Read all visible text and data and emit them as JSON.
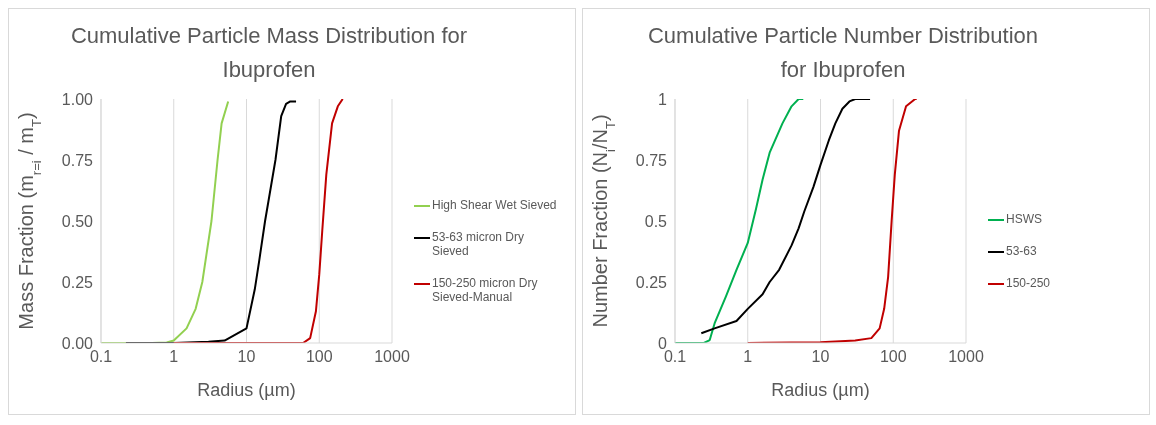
{
  "chart_data": [
    {
      "type": "line",
      "title": "Cumulative Particle Mass Distribution for Ibuprofen",
      "xlabel": "Radius (µm)",
      "ylabel": "Mass Fraction (m$_{r=i}$ / m$_{T}$)",
      "log": "x",
      "grid": true,
      "legend": "right",
      "xlim": [
        0.1,
        1000
      ],
      "xticks": [
        0.1,
        1,
        10,
        100,
        1000
      ],
      "ylim": [
        0,
        1
      ],
      "yticks": [
        {
          "value": 0,
          "label": "0.00"
        },
        {
          "value": 0.25,
          "label": "0.25"
        },
        {
          "value": 0.5,
          "label": "0.50"
        },
        {
          "value": 0.75,
          "label": "0.75"
        },
        {
          "value": 1,
          "label": "1.00"
        }
      ],
      "series": [
        {
          "name": "High Shear Wet Sieved",
          "color": "#92d050",
          "x": [
            0.1,
            0.5,
            0.8,
            1,
            1.5,
            2,
            2.47,
            3.3,
            4.0,
            4.55,
            5.6
          ],
          "values": [
            0,
            0,
            0.002,
            0.01,
            0.06,
            0.14,
            0.25,
            0.5,
            0.75,
            0.9,
            0.99
          ]
        },
        {
          "name": "53-63 micron Dry Sieved",
          "color": "#000000",
          "x": [
            0.22,
            1,
            3,
            5,
            10,
            13,
            15,
            18,
            20,
            25,
            30,
            35,
            40,
            48
          ],
          "values": [
            0,
            0,
            0.005,
            0.01,
            0.06,
            0.22,
            0.34,
            0.5,
            0.58,
            0.75,
            0.93,
            0.98,
            0.99,
            0.99
          ]
        },
        {
          "name": "150-250 micron Dry Sieved-Manual",
          "color": "#c00000",
          "x": [
            1,
            60,
            75,
            90,
            100,
            110,
            125,
            150,
            180,
            210
          ],
          "values": [
            0,
            0,
            0.02,
            0.13,
            0.28,
            0.46,
            0.69,
            0.9,
            0.97,
            1
          ]
        }
      ]
    },
    {
      "type": "line",
      "title": "Cumulative Particle Number Distribution for Ibuprofen",
      "xlabel": "Radius (µm)",
      "ylabel": "Number Fraction (N$_{i}$/N$_{T}$)",
      "log": "x",
      "grid": true,
      "legend": "right",
      "xlim": [
        0.1,
        1000
      ],
      "xticks": [
        0.1,
        1,
        10,
        100,
        1000
      ],
      "ylim": [
        0,
        1
      ],
      "yticks": [
        0,
        0.25,
        0.5,
        0.75,
        1
      ],
      "series": [
        {
          "name": "HSWS",
          "color": "#00b050",
          "x": [
            0.1,
            0.25,
            0.3,
            0.35,
            0.5,
            0.7,
            1,
            1.3,
            1.6,
            2,
            3,
            4,
            5,
            5.8
          ],
          "values": [
            0,
            0,
            0.012,
            0.08,
            0.19,
            0.3,
            0.41,
            0.55,
            0.67,
            0.78,
            0.9,
            0.97,
            1,
            1
          ]
        },
        {
          "name": "53-63",
          "color": "#000000",
          "x": [
            0.23,
            0.35,
            0.7,
            1,
            1.6,
            2,
            2.7,
            4,
            5,
            6,
            8,
            10,
            13,
            16,
            20,
            25,
            30,
            48
          ],
          "values": [
            0.04,
            0.06,
            0.09,
            0.14,
            0.2,
            0.25,
            0.3,
            0.4,
            0.47,
            0.54,
            0.64,
            0.73,
            0.83,
            0.9,
            0.96,
            0.99,
            1,
            1
          ]
        },
        {
          "name": "150-250",
          "color": "#c00000",
          "x": [
            1,
            10,
            30,
            50,
            65,
            75,
            85,
            95,
            105,
            120,
            150,
            200,
            210
          ],
          "values": [
            0,
            0.003,
            0.01,
            0.02,
            0.06,
            0.14,
            0.27,
            0.5,
            0.69,
            0.87,
            0.97,
            1,
            1
          ]
        }
      ]
    }
  ]
}
